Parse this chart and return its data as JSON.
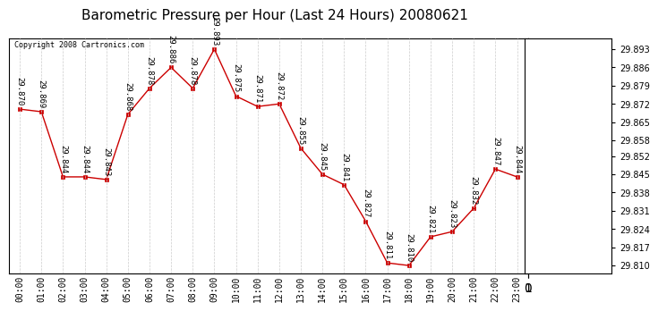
{
  "title": "Barometric Pressure per Hour (Last 24 Hours) 20080621",
  "copyright": "Copyright 2008 Cartronics.com",
  "hours": [
    "00:00",
    "01:00",
    "02:00",
    "03:00",
    "04:00",
    "05:00",
    "06:00",
    "07:00",
    "08:00",
    "09:00",
    "10:00",
    "11:00",
    "12:00",
    "13:00",
    "14:00",
    "15:00",
    "16:00",
    "17:00",
    "18:00",
    "19:00",
    "20:00",
    "21:00",
    "22:00",
    "23:00"
  ],
  "values": [
    29.87,
    29.869,
    29.844,
    29.844,
    29.843,
    29.868,
    29.878,
    29.886,
    29.878,
    29.893,
    29.875,
    29.871,
    29.872,
    29.855,
    29.845,
    29.841,
    29.827,
    29.811,
    29.81,
    29.821,
    29.823,
    29.832,
    29.847,
    29.844
  ],
  "ylim_min": 29.807,
  "ylim_max": 29.897,
  "yticks": [
    29.81,
    29.817,
    29.824,
    29.831,
    29.838,
    29.845,
    29.852,
    29.858,
    29.865,
    29.872,
    29.879,
    29.886,
    29.893
  ],
  "line_color": "#cc0000",
  "marker_color": "#cc0000",
  "bg_color": "#ffffff",
  "grid_color": "#cccccc",
  "title_fontsize": 11,
  "tick_fontsize": 7,
  "annotation_fontsize": 6.5,
  "copyright_fontsize": 6
}
